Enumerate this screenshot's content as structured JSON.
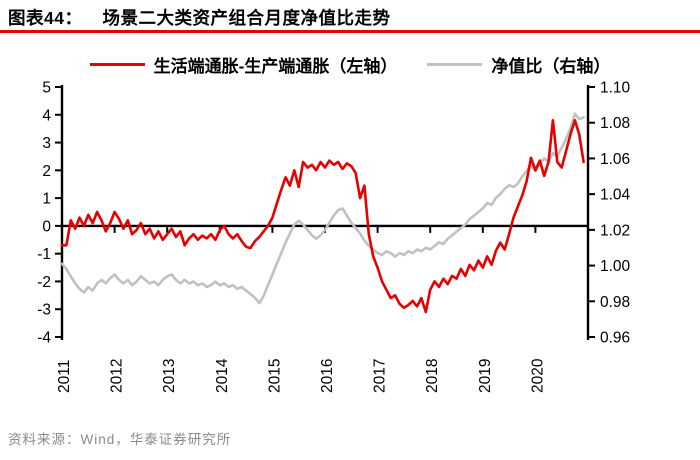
{
  "header": {
    "figure_label": "图表44：",
    "title": "场景二大类资产组合月度净值比走势"
  },
  "colors": {
    "accent_red": "#e60000",
    "series_gray": "#c1c1c1",
    "axis_black": "#000000",
    "source_gray": "#8a8a8a"
  },
  "legend": {
    "items": [
      {
        "label": "生活端通胀-生产端通胀（左轴）",
        "color": "#e60000"
      },
      {
        "label": "净值比（右轴）",
        "color": "#c1c1c1"
      }
    ]
  },
  "footer": {
    "source": "资料来源：Wind，华泰证券研究所"
  },
  "chart_data": {
    "type": "line",
    "title": "场景二大类资产组合月度净值比走势",
    "x_monthly_start": "2011-01",
    "x_monthly_end": "2020-12",
    "x_year_ticks": [
      "2011",
      "2012",
      "2013",
      "2014",
      "2015",
      "2016",
      "2017",
      "2018",
      "2019",
      "2020"
    ],
    "grid": false,
    "legend_position": "top",
    "left_axis": {
      "min": -4,
      "max": 5,
      "ticks": [
        "5",
        "4",
        "3",
        "2",
        "1",
        "0",
        "-1",
        "-2",
        "-3",
        "-4"
      ]
    },
    "right_axis": {
      "min": 0.96,
      "max": 1.1,
      "ticks": [
        "1.10",
        "1.08",
        "1.06",
        "1.04",
        "1.02",
        "1.00",
        "0.98",
        "0.96"
      ]
    },
    "series": [
      {
        "name": "生活端通胀-生产端通胀（左轴）",
        "axis": "left",
        "color": "#e60000",
        "values": [
          -0.7,
          -0.7,
          0.2,
          -0.1,
          0.3,
          0.0,
          0.4,
          0.1,
          0.5,
          0.2,
          -0.2,
          0.1,
          0.5,
          0.25,
          -0.1,
          0.2,
          -0.3,
          -0.15,
          0.1,
          -0.3,
          -0.1,
          -0.45,
          -0.2,
          -0.5,
          -0.3,
          -0.1,
          -0.4,
          -0.2,
          -0.7,
          -0.45,
          -0.3,
          -0.5,
          -0.35,
          -0.45,
          -0.3,
          -0.5,
          -0.15,
          0.0,
          -0.3,
          -0.45,
          -0.3,
          -0.55,
          -0.75,
          -0.8,
          -0.55,
          -0.4,
          -0.2,
          0.0,
          0.3,
          0.8,
          1.3,
          1.75,
          1.45,
          2.0,
          1.4,
          2.3,
          2.1,
          2.2,
          2.0,
          2.3,
          2.1,
          2.35,
          2.2,
          2.3,
          2.05,
          2.25,
          2.15,
          1.9,
          1.0,
          1.45,
          -0.3,
          -1.1,
          -1.5,
          -2.0,
          -2.3,
          -2.6,
          -2.5,
          -2.8,
          -2.95,
          -2.85,
          -2.7,
          -2.9,
          -2.6,
          -3.1,
          -2.3,
          -2.0,
          -2.2,
          -1.9,
          -2.1,
          -1.8,
          -1.9,
          -1.55,
          -1.8,
          -1.4,
          -1.6,
          -1.25,
          -1.5,
          -1.1,
          -1.4,
          -0.9,
          -0.6,
          -0.85,
          -0.3,
          0.3,
          0.7,
          1.1,
          1.6,
          2.45,
          2.0,
          2.35,
          1.8,
          2.3,
          3.8,
          2.3,
          2.1,
          2.7,
          3.3,
          3.8,
          3.3,
          2.3
        ]
      },
      {
        "name": "净值比（右轴）",
        "axis": "right",
        "color": "#c1c1c1",
        "values": [
          1.001,
          0.998,
          0.994,
          0.99,
          0.987,
          0.985,
          0.988,
          0.986,
          0.99,
          0.992,
          0.99,
          0.993,
          0.995,
          0.992,
          0.99,
          0.992,
          0.989,
          0.991,
          0.994,
          0.992,
          0.99,
          0.991,
          0.989,
          0.992,
          0.994,
          0.995,
          0.992,
          0.99,
          0.992,
          0.99,
          0.991,
          0.989,
          0.99,
          0.988,
          0.989,
          0.991,
          0.989,
          0.99,
          0.988,
          0.989,
          0.987,
          0.988,
          0.986,
          0.984,
          0.982,
          0.979,
          0.983,
          0.989,
          0.995,
          1.001,
          1.007,
          1.013,
          1.018,
          1.023,
          1.025,
          1.023,
          1.02,
          1.017,
          1.015,
          1.017,
          1.02,
          1.024,
          1.028,
          1.031,
          1.032,
          1.028,
          1.024,
          1.021,
          1.018,
          1.014,
          1.011,
          1.009,
          1.007,
          1.006,
          1.008,
          1.007,
          1.005,
          1.007,
          1.006,
          1.008,
          1.007,
          1.009,
          1.008,
          1.01,
          1.009,
          1.011,
          1.013,
          1.012,
          1.015,
          1.017,
          1.019,
          1.021,
          1.023,
          1.026,
          1.028,
          1.03,
          1.032,
          1.035,
          1.034,
          1.038,
          1.04,
          1.043,
          1.045,
          1.044,
          1.046,
          1.05,
          1.053,
          1.056,
          1.053,
          1.057,
          1.06,
          1.058,
          1.063,
          1.061,
          1.066,
          1.071,
          1.077,
          1.085,
          1.082,
          1.083
        ]
      }
    ]
  }
}
